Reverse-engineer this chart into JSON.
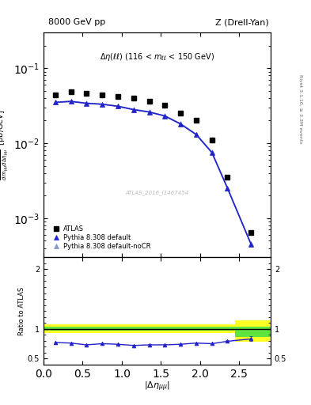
{
  "title_left": "8000 GeV pp",
  "title_right": "Z (Drell-Yan)",
  "annotation": "\\Delta\\eta(ll) (116 < m_{ll} < 150 GeV)",
  "right_label_top": "Rivet 3.1.10,",
  "right_label_bot": "≥ 3.3M events",
  "watermark": "ATLAS_2016_I1467454",
  "atlas_x": [
    0.15,
    0.35,
    0.55,
    0.75,
    0.95,
    1.15,
    1.35,
    1.55,
    1.75,
    1.95,
    2.15,
    2.35,
    2.65
  ],
  "atlas_y": [
    0.044,
    0.048,
    0.046,
    0.044,
    0.042,
    0.04,
    0.036,
    0.032,
    0.025,
    0.02,
    0.011,
    0.0035,
    0.00065
  ],
  "pythia_default_x": [
    0.15,
    0.35,
    0.55,
    0.75,
    0.95,
    1.15,
    1.35,
    1.55,
    1.75,
    1.95,
    2.15,
    2.35,
    2.65
  ],
  "pythia_default_y": [
    0.035,
    0.036,
    0.034,
    0.033,
    0.031,
    0.028,
    0.026,
    0.023,
    0.018,
    0.013,
    0.0075,
    0.0025,
    0.00045
  ],
  "pythia_nocr_x": [
    0.15,
    0.35,
    0.55,
    0.75,
    0.95,
    1.15,
    1.35,
    1.55,
    1.75,
    1.95,
    2.15,
    2.35,
    2.65
  ],
  "pythia_nocr_y": [
    0.0352,
    0.0362,
    0.0342,
    0.0332,
    0.0312,
    0.0282,
    0.0262,
    0.0232,
    0.0182,
    0.0132,
    0.0076,
    0.00252,
    0.000452
  ],
  "ratio_default_x": [
    0.15,
    0.35,
    0.55,
    0.75,
    0.95,
    1.15,
    1.35,
    1.55,
    1.75,
    1.95,
    2.15,
    2.35,
    2.65
  ],
  "ratio_default_y": [
    0.77,
    0.76,
    0.73,
    0.75,
    0.74,
    0.72,
    0.73,
    0.73,
    0.74,
    0.76,
    0.75,
    0.79,
    0.83
  ],
  "ratio_err": [
    0.008,
    0.008,
    0.008,
    0.008,
    0.008,
    0.008,
    0.008,
    0.008,
    0.008,
    0.008,
    0.01,
    0.015,
    0.04
  ],
  "atlas_color": "#000000",
  "pythia_default_color": "#2222cc",
  "pythia_nocr_color": "#8899cc",
  "xlim": [
    0.0,
    2.9
  ],
  "ylim_main": [
    0.0003,
    0.3
  ],
  "ylim_ratio": [
    0.4,
    2.2
  ],
  "bg_color": "#ffffff",
  "green_lo": 0.97,
  "green_hi": 1.03,
  "yellow_lo": 0.93,
  "yellow_hi": 1.07,
  "green_lo_last": 0.86,
  "green_hi_last": 1.04,
  "yellow_lo_last": 0.78,
  "yellow_hi_last": 1.14,
  "band_break_x": 2.45,
  "band_end_x": 2.9
}
